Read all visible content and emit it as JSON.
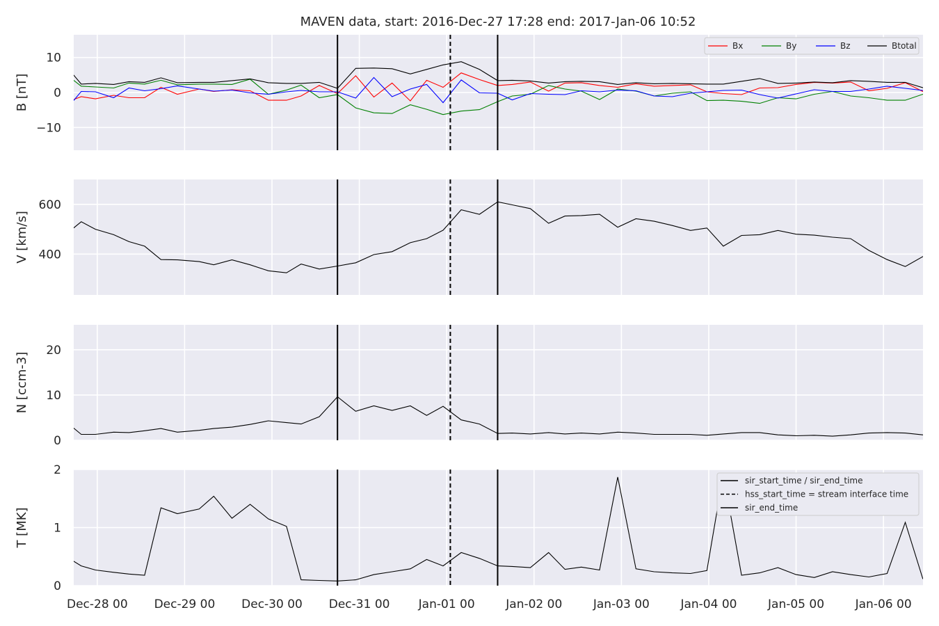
{
  "title": "MAVEN data, start: 2016-Dec-27 17:28  end: 2017-Jan-06 10:52",
  "x_ticks": [
    "Dec-28 00",
    "Dec-29 00",
    "Dec-30 00",
    "Dec-31 00",
    "Jan-01 00",
    "Jan-02 00",
    "Jan-03 00",
    "Jan-04 00",
    "Jan-05 00",
    "Jan-06 00"
  ],
  "colors": {
    "panel_background": "#eaeaf2",
    "grid": "#ffffff",
    "Bx": "#ff0000",
    "By": "#008000",
    "Bz": "#0000ff",
    "Btotal": "#000000",
    "event_lines": "#000000"
  },
  "events": {
    "sir_start_time": "Dec-30 18:00",
    "hss_start_time": "Jan-01 01:00",
    "sir_end_time": "Jan-01 14:00"
  },
  "chart_data": {
    "type": "line",
    "title": "MAVEN data, start: 2016-Dec-27 17:28  end: 2017-Jan-06 10:52",
    "x_range": [
      "2016-12-27 17:28",
      "2017-01-06 10:52"
    ],
    "x_time_hours_since_Dec-28_00": [
      -6.5,
      -4.4,
      -0.5,
      4.5,
      8.7,
      13,
      17.5,
      22,
      28,
      32,
      37,
      42,
      47,
      52,
      56,
      61,
      66,
      71,
      76,
      81,
      86,
      90.5,
      95,
      100,
      105,
      110,
      114,
      119,
      124,
      128.5,
      133,
      138,
      143,
      148,
      153,
      158,
      163,
      167.5,
      172,
      177,
      182,
      187,
      192,
      197,
      202,
      207,
      212,
      217,
      222,
      226.8,
      232.5
    ],
    "grid": true,
    "legend_position": "top-right",
    "panels": [
      {
        "ylabel": "B [nT]",
        "ylim": [
          -16.5,
          16.5
        ],
        "yticks": [
          "10",
          "0",
          "−10"
        ],
        "series": [
          {
            "name": "Bx",
            "color": "#ff0000",
            "values": [
              -2,
              -1.2,
              -1.8,
              -0.8,
              -1.5,
              -1.5,
              1.5,
              -0.5,
              1,
              0.3,
              0.8,
              0.5,
              -2.2,
              -2.2,
              -1,
              2,
              -0.3,
              4.8,
              -1.3,
              2.7,
              -2.4,
              3.5,
              1.5,
              5.6,
              3.7,
              2,
              2.3,
              3,
              0.4,
              2.7,
              2.8,
              2,
              1.5,
              2.5,
              1.8,
              2,
              2.2,
              0.2,
              -0.3,
              -0.6,
              1.3,
              1.4,
              2.3,
              2.9,
              2.7,
              3,
              0.5,
              1.2,
              2.8,
              0.3,
              2.4
            ]
          },
          {
            "name": "By",
            "color": "#008000",
            "values": [
              3.5,
              1.8,
              1.6,
              1.3,
              2.7,
              2.4,
              3.5,
              2.2,
              2.4,
              2.4,
              2.3,
              3.8,
              -0.5,
              0.7,
              2.1,
              -1.5,
              -0.6,
              -4.4,
              -5.8,
              -6,
              -3.5,
              -4.8,
              -6.3,
              -5.3,
              -4.9,
              -2.6,
              -1,
              -0.5,
              2,
              1,
              0.4,
              -2,
              1,
              0.4,
              -1,
              -0.2,
              0.2,
              -2.3,
              -2.2,
              -2.5,
              -3.1,
              -1.5,
              -1.8,
              -0.5,
              0.3,
              -1,
              -1.5,
              -2.2,
              -2.2,
              -0.5,
              -1.1
            ]
          },
          {
            "name": "Bz",
            "color": "#0000ff",
            "values": [
              -2.3,
              0.3,
              0.2,
              -1.5,
              1.3,
              0.5,
              1.1,
              1.9,
              1,
              0.4,
              0.7,
              -0.1,
              -0.5,
              0.2,
              0.6,
              0.2,
              0.2,
              -1.6,
              4.3,
              -1.2,
              1,
              2.3,
              -2.9,
              3.6,
              -0.1,
              -0.2,
              -2.1,
              -0.3,
              -0.5,
              -0.6,
              0.5,
              0.2,
              0.7,
              0.5,
              -1,
              -1.2,
              -0.2,
              0.2,
              0.6,
              0.7,
              -0.6,
              -1.6,
              -0.4,
              0.8,
              0.3,
              0.3,
              1,
              1.8,
              1.2,
              0.6,
              0.4
            ]
          },
          {
            "name": "Btotal",
            "color": "#000000",
            "values": [
              5,
              2.4,
              2.6,
              2.3,
              3.1,
              2.9,
              4.2,
              2.8,
              2.9,
              2.9,
              3.4,
              3.9,
              2.8,
              2.6,
              2.6,
              2.9,
              1.2,
              6.9,
              7,
              6.8,
              5.3,
              6.6,
              7.9,
              8.8,
              6.6,
              3.4,
              3.5,
              3.3,
              2.7,
              3.1,
              3.2,
              3.1,
              2.3,
              2.8,
              2.5,
              2.6,
              2.5,
              2.4,
              2.4,
              3.2,
              4,
              2.6,
              2.7,
              3,
              2.8,
              3.4,
              3.2,
              2.9,
              2.9,
              1.4,
              2.6
            ]
          }
        ]
      },
      {
        "ylabel": "V [km/s]",
        "ylim": [
          236,
          700
        ],
        "yticks": [
          "600",
          "400"
        ],
        "series": [
          {
            "name": "",
            "color": "#000000",
            "values": [
              505,
              530,
              500,
              478,
              450,
              432,
              378,
              377,
              370,
              357,
              377,
              357,
              333,
              325,
              360,
              340,
              352,
              365,
              398,
              410,
              446,
              462,
              496,
              578,
              560,
              610,
              598,
              583,
              524,
              553,
              555,
              560,
              508,
              542,
              532,
              515,
              495,
              505,
              432,
              475,
              478,
              495,
              480,
              476,
              468,
              462,
              415,
              378,
              350,
              390,
              385
            ]
          }
        ]
      },
      {
        "ylabel": "N [ccm-3]",
        "ylim": [
          0,
          25.5
        ],
        "yticks": [
          "20",
          "10",
          "0"
        ],
        "series": [
          {
            "name": "",
            "color": "#000000",
            "values": [
              2.7,
              1.3,
              1.3,
              1.8,
              1.7,
              2.1,
              2.6,
              1.8,
              2.2,
              2.6,
              2.9,
              3.5,
              4.3,
              3.9,
              3.6,
              5.2,
              9.6,
              6.4,
              7.6,
              6.6,
              7.6,
              5.5,
              7.5,
              4.5,
              3.6,
              1.5,
              1.6,
              1.4,
              1.7,
              1.4,
              1.6,
              1.4,
              1.8,
              1.6,
              1.3,
              1.3,
              1.3,
              1.1,
              1.4,
              1.7,
              1.7,
              1.2,
              1,
              1.1,
              0.9,
              1.2,
              1.6,
              1.7,
              1.6,
              1.2,
              1.3
            ]
          }
        ]
      },
      {
        "ylabel": "T [MK]",
        "ylim": [
          0,
          2
        ],
        "yticks": [
          "2",
          "1",
          "0"
        ],
        "series": [
          {
            "name": "",
            "color": "#000000",
            "values": [
              0.42,
              0.34,
              0.27,
              0.23,
              0.2,
              0.18,
              1.34,
              1.24,
              1.32,
              1.54,
              1.16,
              1.4,
              1.15,
              1.02,
              0.1,
              0.09,
              0.08,
              0.1,
              0.19,
              0.24,
              0.29,
              0.45,
              0.34,
              0.57,
              0.47,
              0.34,
              0.33,
              0.31,
              0.57,
              0.28,
              0.32,
              0.27,
              1.87,
              0.29,
              0.24,
              0.22,
              0.21,
              0.26,
              1.92,
              0.18,
              0.22,
              0.31,
              0.19,
              0.14,
              0.24,
              0.19,
              0.15,
              0.21,
              1.09,
              0.12,
              0.12
            ]
          }
        ]
      }
    ]
  },
  "legends": {
    "b_panel": [
      "Bx",
      "By",
      "Bz",
      "Btotal"
    ],
    "t_panel": [
      {
        "label": "sir_start_time / sir_end_time",
        "style": "solid"
      },
      {
        "label": "hss_start_time = stream interface time",
        "style": "dashed"
      },
      {
        "label": "sir_end_time",
        "style": "solid"
      }
    ]
  }
}
